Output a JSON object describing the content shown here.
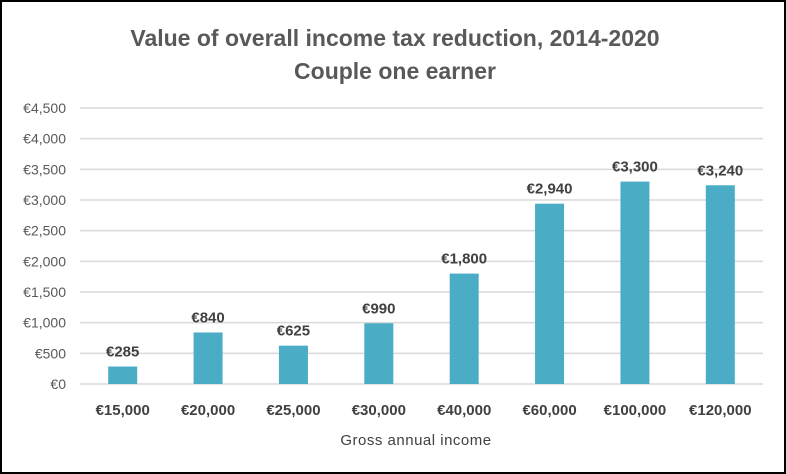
{
  "chart_data": {
    "type": "bar",
    "title": "Value of overall income tax reduction, 2014-2020",
    "subtitle": "Couple one earner",
    "xlabel": "Gross annual income",
    "ylabel": "",
    "categories": [
      "€15,000",
      "€20,000",
      "€25,000",
      "€30,000",
      "€40,000",
      "€60,000",
      "€100,000",
      "€120,000"
    ],
    "values": [
      285,
      840,
      625,
      990,
      1800,
      2940,
      3300,
      3240
    ],
    "data_labels": [
      "€285",
      "€840",
      "€625",
      "€990",
      "€1,800",
      "€2,940",
      "€3,300",
      "€3,240"
    ],
    "ylim": [
      0,
      4500
    ],
    "yticks": [
      0,
      500,
      1000,
      1500,
      2000,
      2500,
      3000,
      3500,
      4000,
      4500
    ],
    "ytick_labels": [
      "€0",
      "€500",
      "€1,000",
      "€1,500",
      "€2,000",
      "€2,500",
      "€3,000",
      "€3,500",
      "€4,000",
      "€4,500"
    ],
    "grid": true,
    "legend": "none",
    "colors": {
      "bar": "#4BACC6",
      "grid": "#D9D9D9",
      "text": "#595959"
    }
  }
}
